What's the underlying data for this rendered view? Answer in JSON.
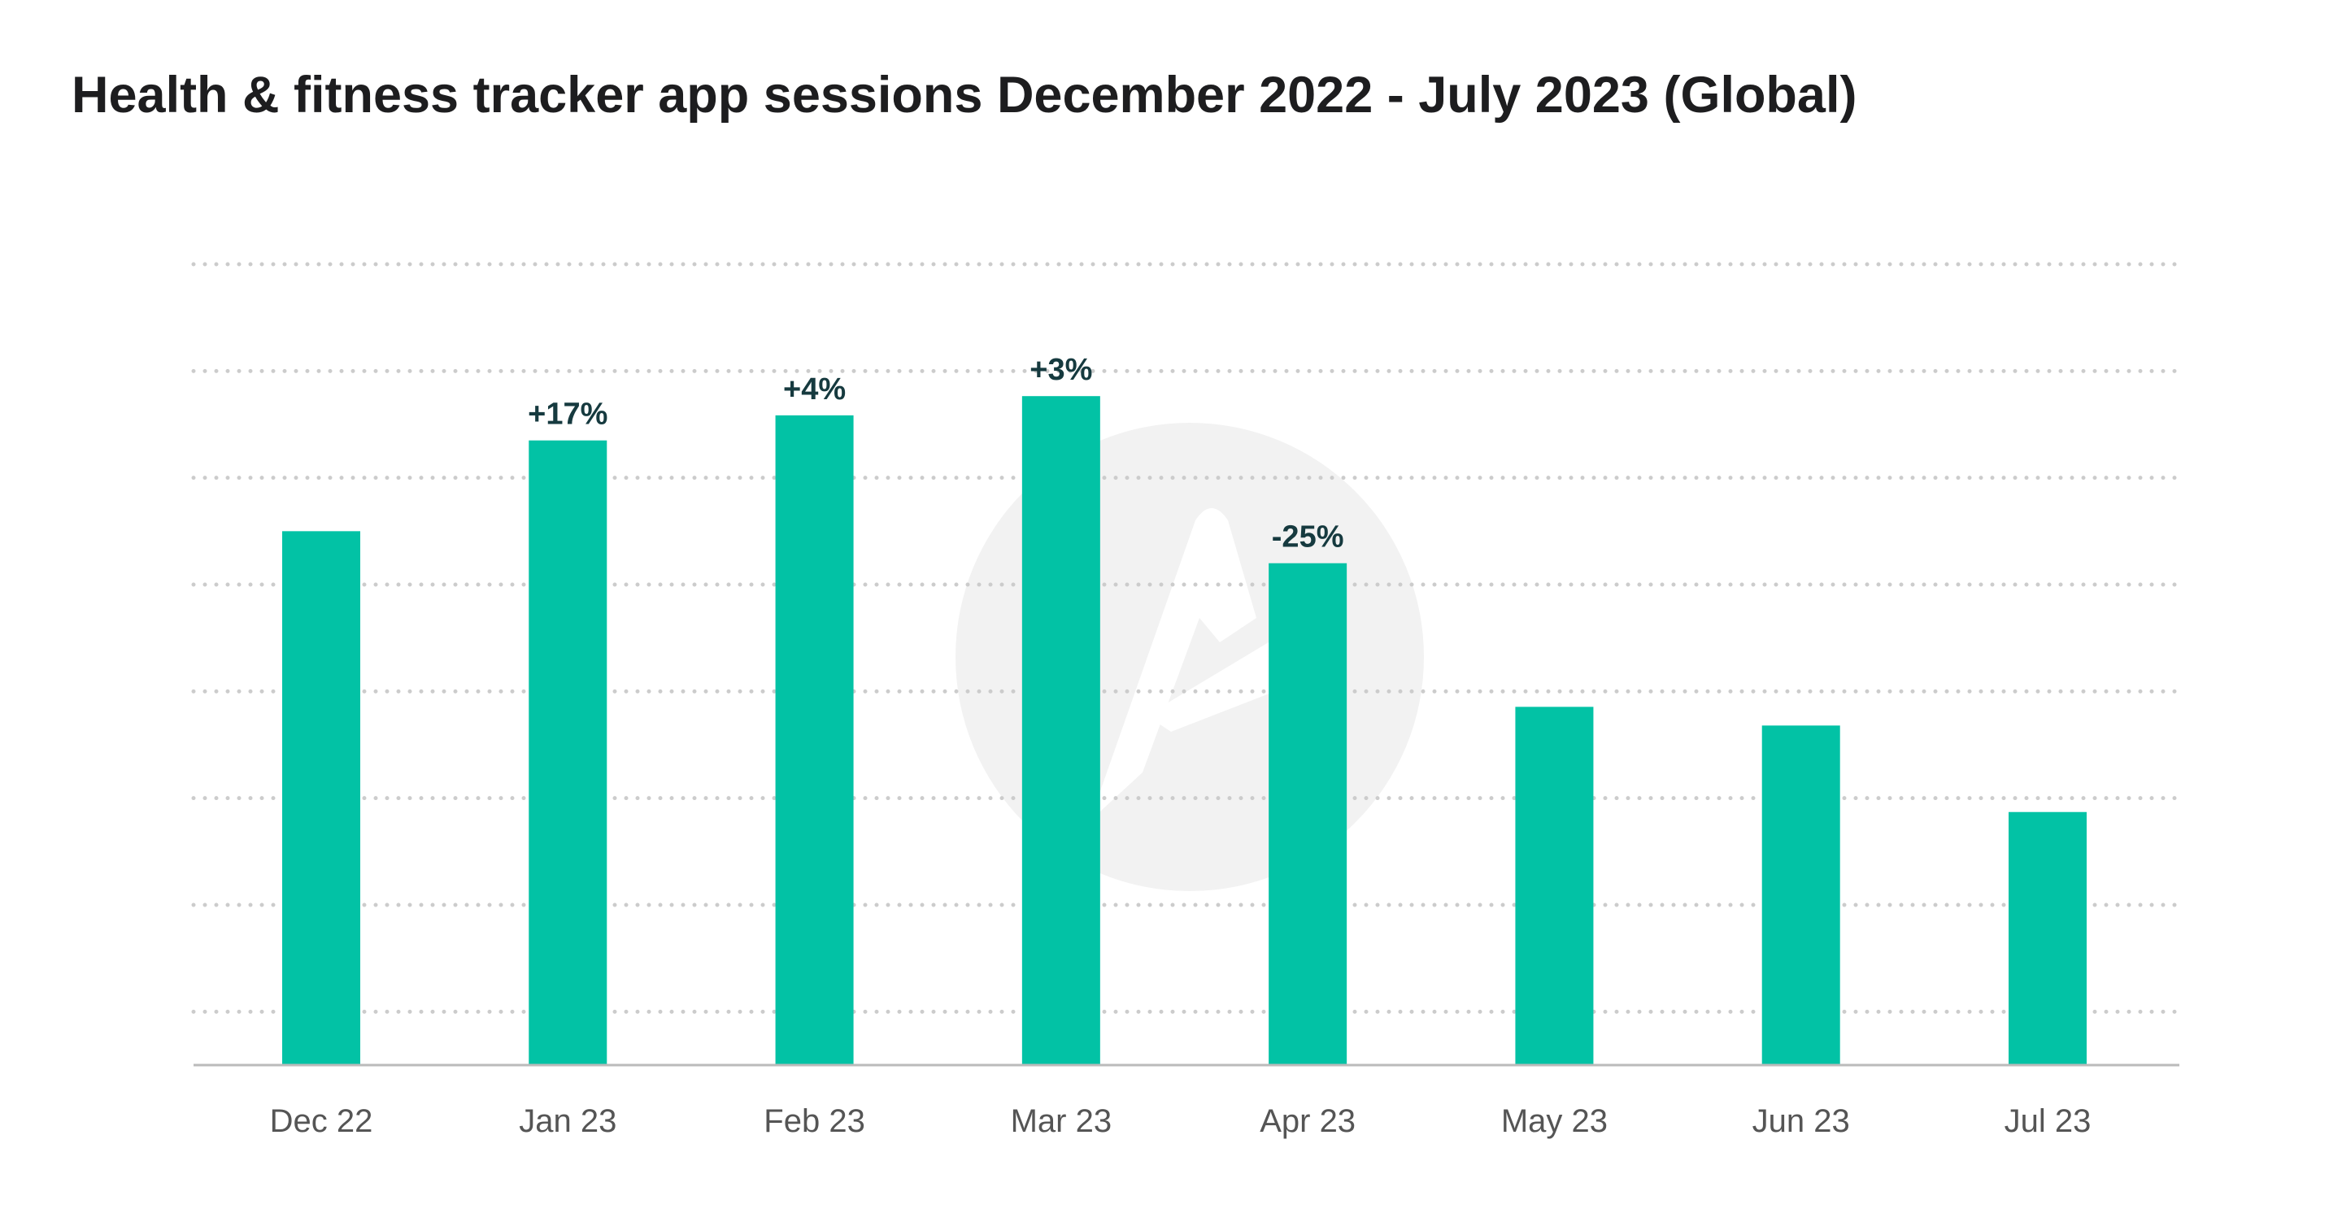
{
  "title": "Health & fitness tracker app sessions December 2022 - July 2023 (Global)",
  "colors": {
    "bar": "#02c2a5",
    "grid": "#cccccc",
    "axis": "#bbbbbb",
    "title": "#1d1d1f",
    "tick_label": "#555555",
    "data_label": "#163a3f",
    "watermark": "#f2f2f2"
  },
  "chart_data": {
    "type": "bar",
    "title": "Health & fitness tracker app sessions December 2022 - July 2023 (Global)",
    "xlabel": "",
    "ylabel": "",
    "categories": [
      "Dec 22",
      "Jan 23",
      "Feb 23",
      "Mar 23",
      "Apr 23",
      "May 23",
      "Jun 23",
      "Jul 23"
    ],
    "values": [
      100,
      117,
      121.7,
      125.3,
      94,
      67.1,
      63.6,
      47.4
    ],
    "data_labels": [
      "",
      "+17%",
      "+4%",
      "+3%",
      "-25%",
      "",
      "",
      ""
    ],
    "ylim": [
      0,
      150
    ],
    "y_tick_labels_shown": false,
    "grid": true,
    "grid_style": "dotted",
    "legend": "none",
    "watermark": "logo"
  }
}
